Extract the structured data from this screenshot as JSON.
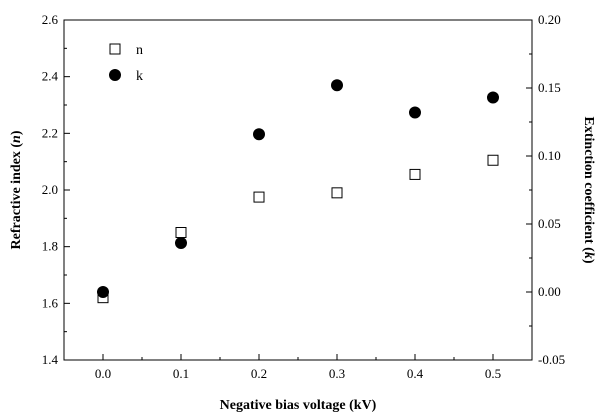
{
  "chart_data": {
    "type": "scatter",
    "xlabel": "Negative bias voltage (kV)",
    "ylabel_left": "Refractive index (n)",
    "ylabel_right": "Extinction coefficient (k)",
    "xlim": [
      -0.05,
      0.55
    ],
    "ylim_left": [
      1.4,
      2.6
    ],
    "ylim_right": [
      -0.05,
      0.2
    ],
    "x_ticks": [
      "0.0",
      "0.1",
      "0.2",
      "0.3",
      "0.4",
      "0.5"
    ],
    "y_left_ticks": [
      "1.4",
      "1.6",
      "1.8",
      "2.0",
      "2.2",
      "2.4",
      "2.6"
    ],
    "y_right_ticks": [
      "-0.05",
      "0.00",
      "0.05",
      "0.10",
      "0.15",
      "0.20"
    ],
    "legend_position": "top-left",
    "series": [
      {
        "name": "n",
        "axis": "left",
        "marker": "open-square",
        "x": [
          0.0,
          0.1,
          0.2,
          0.3,
          0.4,
          0.5
        ],
        "y": [
          1.62,
          1.85,
          1.975,
          1.99,
          2.055,
          2.105
        ]
      },
      {
        "name": "k",
        "axis": "right",
        "marker": "filled-circle",
        "x": [
          0.0,
          0.1,
          0.2,
          0.3,
          0.4,
          0.5
        ],
        "y": [
          0.0,
          0.036,
          0.116,
          0.152,
          0.132,
          0.143
        ]
      }
    ]
  }
}
